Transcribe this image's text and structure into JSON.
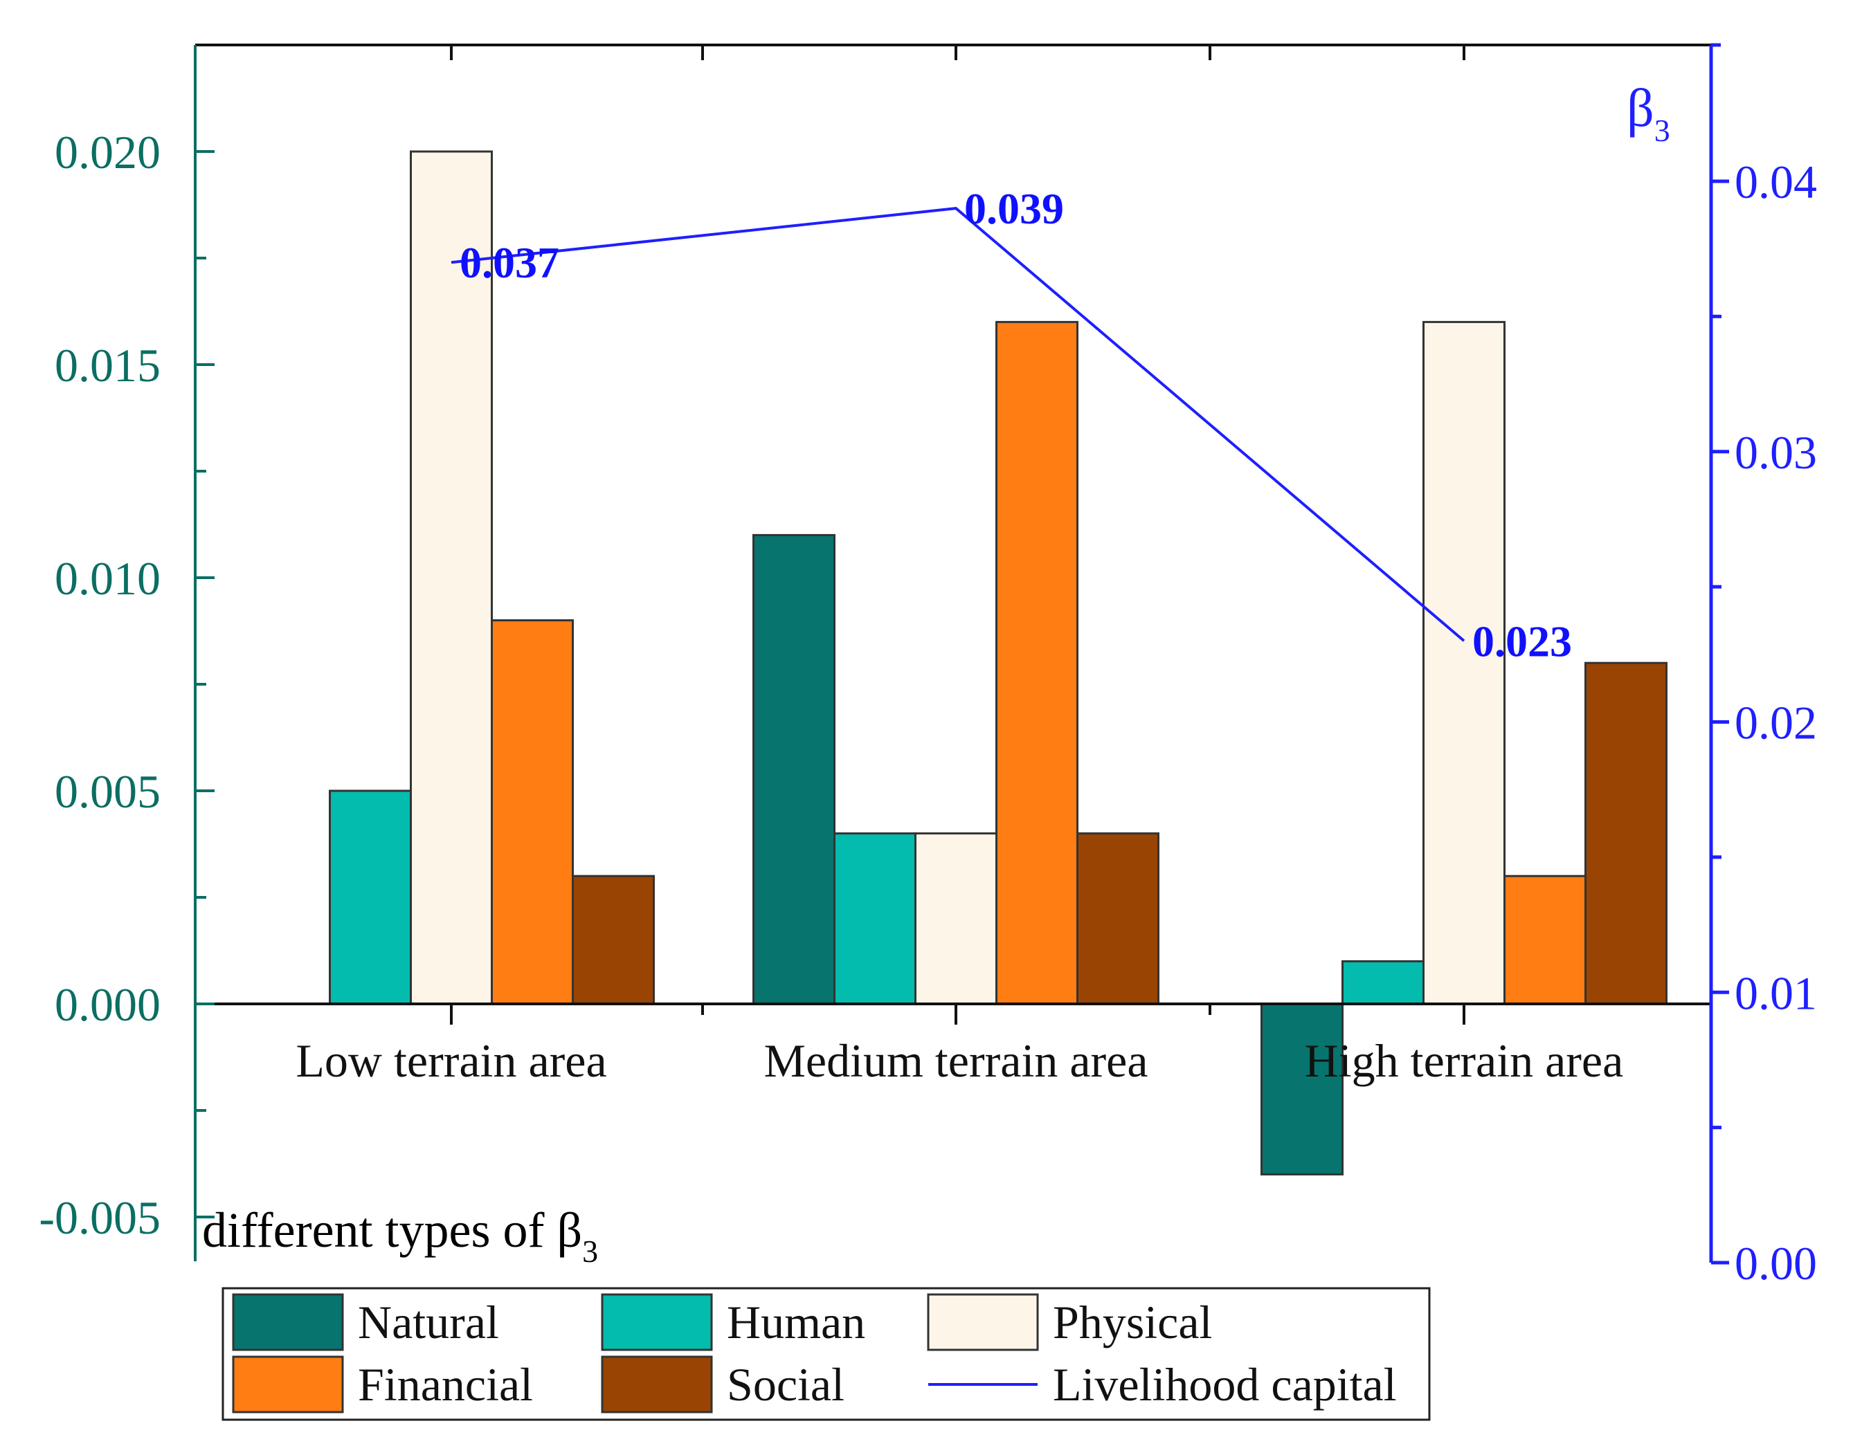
{
  "chart_data": {
    "type": "bar",
    "categories": [
      "Low terrain area",
      "Medium terrain area",
      "High terrain area"
    ],
    "series": [
      {
        "name": "Natural",
        "color": "#07756d",
        "values": [
          0.0,
          0.011,
          -0.004
        ]
      },
      {
        "name": "Human",
        "color": "#03bcae",
        "values": [
          0.005,
          0.004,
          0.001
        ]
      },
      {
        "name": "Physical",
        "color": "#fdf6e8",
        "values": [
          0.02,
          0.004,
          0.016
        ]
      },
      {
        "name": "Financial",
        "color": "#ff7d13",
        "values": [
          0.009,
          0.016,
          0.003
        ]
      },
      {
        "name": "Social",
        "color": "#994403",
        "values": [
          0.003,
          0.004,
          0.008
        ]
      }
    ],
    "line_series": {
      "name": "Livelihood capital",
      "color": "#1f1fff",
      "axis": "right",
      "values": [
        0.037,
        0.039,
        0.023
      ],
      "labels": [
        "0.037",
        "0.039",
        "0.023"
      ]
    },
    "xlabel": "different types of",
    "xlabel_symbol": "β",
    "xlabel_subscript": "3",
    "ylabel_right_symbol": "β",
    "ylabel_right_subscript": "3",
    "ylim_left": [
      -0.005,
      0.0225
    ],
    "ylim_right": [
      0.0,
      0.045
    ],
    "left_ticks": [
      -0.005,
      0.0,
      0.005,
      0.01,
      0.015,
      0.02
    ],
    "left_tick_labels": [
      "-0.005",
      "0.000",
      "0.005",
      "0.010",
      "0.015",
      "0.020"
    ],
    "right_ticks": [
      0.0,
      0.01,
      0.02,
      0.03,
      0.04
    ],
    "right_tick_labels": [
      "0.00",
      "0.01",
      "0.02",
      "0.03",
      "0.04"
    ],
    "legend": [
      "Natural",
      "Human",
      "Physical",
      "Financial",
      "Social",
      "Livelihood capital"
    ],
    "legend_position": "bottom",
    "grid": false,
    "left_axis_color": "#0b6e63",
    "right_axis_color": "#1f1fff"
  }
}
